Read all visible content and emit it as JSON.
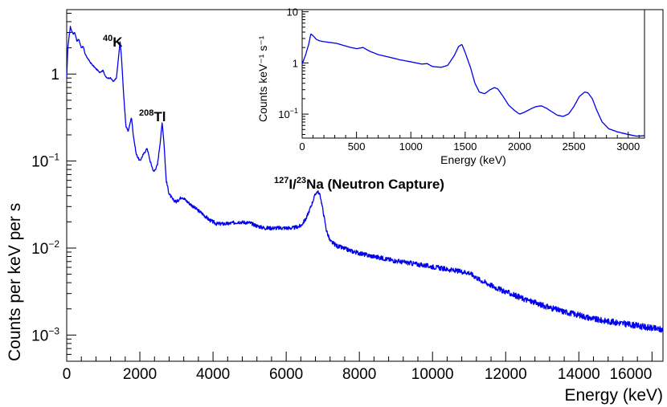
{
  "chart_data": [
    {
      "type": "line",
      "scale_y": "log",
      "xlabel": "Energy (keV)",
      "ylabel": "Counts per keV per s",
      "xlim": [
        0,
        16300
      ],
      "ylim": [
        0.0005,
        5.5
      ],
      "x_ticks": [
        "0",
        "2000",
        "4000",
        "6000",
        "8000",
        "10000",
        "12000",
        "14000",
        "16000"
      ],
      "y_ticks": [
        {
          "base": "1",
          "exp": ""
        },
        {
          "base": "10",
          "exp": "−1"
        },
        {
          "base": "10",
          "exp": "−2"
        },
        {
          "base": "10",
          "exp": "−3"
        }
      ],
      "annotations": [
        {
          "sup": "40",
          "text": "K"
        },
        {
          "sup": "208",
          "text": "Tl"
        },
        {
          "sup": "127",
          "text": "I/",
          "sup2": "23",
          "text2": "Na (Neutron Capture)"
        }
      ],
      "series": [
        {
          "name": "spectrum",
          "color": "#0000ee",
          "points": [
            [
              0,
              0.9
            ],
            [
              30,
              2.0
            ],
            [
              60,
              2.6
            ],
            [
              100,
              3.5
            ],
            [
              140,
              3.1
            ],
            [
              180,
              2.9
            ],
            [
              220,
              3.0
            ],
            [
              280,
              2.4
            ],
            [
              330,
              2.5
            ],
            [
              400,
              2.0
            ],
            [
              450,
              2.1
            ],
            [
              500,
              1.7
            ],
            [
              580,
              1.5
            ],
            [
              650,
              1.35
            ],
            [
              720,
              1.25
            ],
            [
              800,
              1.15
            ],
            [
              900,
              1.05
            ],
            [
              1000,
              1.1
            ],
            [
              1050,
              0.95
            ],
            [
              1100,
              0.9
            ],
            [
              1200,
              0.9
            ],
            [
              1280,
              0.82
            ],
            [
              1360,
              0.9
            ],
            [
              1420,
              1.6
            ],
            [
              1460,
              2.4
            ],
            [
              1500,
              1.5
            ],
            [
              1560,
              0.55
            ],
            [
              1620,
              0.25
            ],
            [
              1680,
              0.22
            ],
            [
              1740,
              0.28
            ],
            [
              1770,
              0.32
            ],
            [
              1820,
              0.2
            ],
            [
              1900,
              0.12
            ],
            [
              2000,
              0.1
            ],
            [
              2100,
              0.12
            ],
            [
              2200,
              0.14
            ],
            [
              2280,
              0.1
            ],
            [
              2380,
              0.075
            ],
            [
              2480,
              0.09
            ],
            [
              2560,
              0.17
            ],
            [
              2610,
              0.28
            ],
            [
              2660,
              0.16
            ],
            [
              2720,
              0.06
            ],
            [
              2800,
              0.042
            ],
            [
              2900,
              0.036
            ],
            [
              3000,
              0.034
            ],
            [
              3150,
              0.039
            ],
            [
              3300,
              0.034
            ],
            [
              3500,
              0.029
            ],
            [
              3700,
              0.025
            ],
            [
              3900,
              0.021
            ],
            [
              4100,
              0.019
            ],
            [
              4400,
              0.019
            ],
            [
              4700,
              0.02
            ],
            [
              5000,
              0.0195
            ],
            [
              5200,
              0.018
            ],
            [
              5400,
              0.017
            ],
            [
              5700,
              0.017
            ],
            [
              6000,
              0.017
            ],
            [
              6200,
              0.017
            ],
            [
              6400,
              0.018
            ],
            [
              6550,
              0.022
            ],
            [
              6700,
              0.032
            ],
            [
              6800,
              0.042
            ],
            [
              6860,
              0.045
            ],
            [
              6930,
              0.04
            ],
            [
              7000,
              0.028
            ],
            [
              7100,
              0.016
            ],
            [
              7200,
              0.012
            ],
            [
              7400,
              0.0105
            ],
            [
              7800,
              0.0092
            ],
            [
              8200,
              0.0083
            ],
            [
              8600,
              0.0077
            ],
            [
              9000,
              0.0071
            ],
            [
              9500,
              0.0066
            ],
            [
              10000,
              0.0061
            ],
            [
              10500,
              0.0056
            ],
            [
              11000,
              0.0052
            ],
            [
              11300,
              0.0043
            ],
            [
              11800,
              0.0034
            ],
            [
              12500,
              0.0026
            ],
            [
              13000,
              0.0022
            ],
            [
              13500,
              0.0019
            ],
            [
              14000,
              0.0017
            ],
            [
              14500,
              0.0015
            ],
            [
              15000,
              0.0014
            ],
            [
              15500,
              0.0013
            ],
            [
              16000,
              0.0012
            ],
            [
              16300,
              0.00115
            ]
          ]
        }
      ]
    },
    {
      "type": "line",
      "scale_y": "log",
      "xlabel": "Energy (keV)",
      "ylabel": "Counts keV⁻¹ s⁻¹",
      "xlim": [
        0,
        3150
      ],
      "ylim": [
        0.034,
        11
      ],
      "x_ticks": [
        "0",
        "500",
        "1000",
        "1500",
        "2000",
        "2500",
        "3000"
      ],
      "y_ticks": [
        {
          "base": "10",
          "exp": ""
        },
        {
          "base": "1",
          "exp": ""
        },
        {
          "base": "10",
          "exp": "−1"
        }
      ],
      "series": [
        {
          "name": "spectrum-zoom",
          "color": "#0000ee",
          "points": [
            [
              0,
              0.95
            ],
            [
              30,
              1.4
            ],
            [
              60,
              2.3
            ],
            [
              80,
              3.7
            ],
            [
              100,
              3.4
            ],
            [
              130,
              2.9
            ],
            [
              160,
              2.7
            ],
            [
              200,
              2.6
            ],
            [
              260,
              2.5
            ],
            [
              320,
              2.4
            ],
            [
              380,
              2.2
            ],
            [
              450,
              2.0
            ],
            [
              500,
              1.9
            ],
            [
              560,
              2.0
            ],
            [
              620,
              1.7
            ],
            [
              700,
              1.45
            ],
            [
              800,
              1.3
            ],
            [
              900,
              1.15
            ],
            [
              1000,
              1.05
            ],
            [
              1100,
              0.95
            ],
            [
              1150,
              0.97
            ],
            [
              1200,
              0.85
            ],
            [
              1280,
              0.82
            ],
            [
              1340,
              0.9
            ],
            [
              1400,
              1.4
            ],
            [
              1440,
              2.1
            ],
            [
              1470,
              2.3
            ],
            [
              1500,
              1.6
            ],
            [
              1550,
              0.8
            ],
            [
              1590,
              0.4
            ],
            [
              1630,
              0.27
            ],
            [
              1680,
              0.25
            ],
            [
              1730,
              0.3
            ],
            [
              1770,
              0.33
            ],
            [
              1800,
              0.31
            ],
            [
              1850,
              0.22
            ],
            [
              1900,
              0.15
            ],
            [
              1950,
              0.12
            ],
            [
              2000,
              0.1
            ],
            [
              2050,
              0.11
            ],
            [
              2100,
              0.125
            ],
            [
              2150,
              0.14
            ],
            [
              2200,
              0.145
            ],
            [
              2250,
              0.13
            ],
            [
              2300,
              0.11
            ],
            [
              2350,
              0.095
            ],
            [
              2400,
              0.09
            ],
            [
              2450,
              0.1
            ],
            [
              2500,
              0.14
            ],
            [
              2550,
              0.22
            ],
            [
              2600,
              0.27
            ],
            [
              2630,
              0.26
            ],
            [
              2670,
              0.2
            ],
            [
              2710,
              0.12
            ],
            [
              2760,
              0.07
            ],
            [
              2820,
              0.052
            ],
            [
              2900,
              0.045
            ],
            [
              3000,
              0.04
            ],
            [
              3080,
              0.037
            ],
            [
              3150,
              0.038
            ]
          ]
        }
      ]
    }
  ]
}
